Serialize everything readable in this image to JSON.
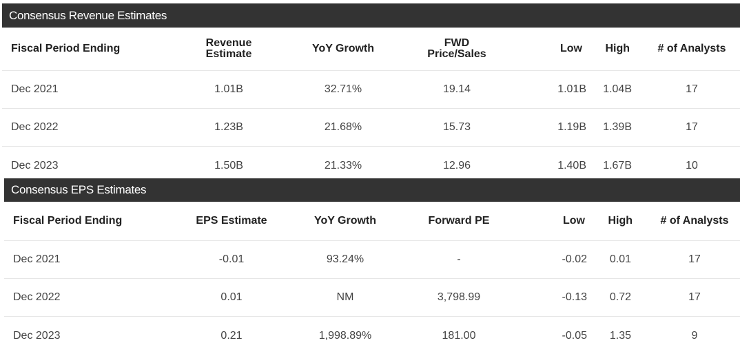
{
  "revenue": {
    "title": "Consensus Revenue Estimates",
    "headers": {
      "period": "Fiscal Period Ending",
      "estimate_line1": "Revenue",
      "estimate_line2": "Estimate",
      "growth": "YoY Growth",
      "ratio_line1": "FWD",
      "ratio_line2": "Price/Sales",
      "low": "Low",
      "high": "High",
      "analysts": "# of Analysts"
    },
    "rows": [
      {
        "period": "Dec 2021",
        "estimate": "1.01B",
        "growth": "32.71%",
        "ratio": "19.14",
        "low": "1.01B",
        "high": "1.04B",
        "analysts": "17"
      },
      {
        "period": "Dec 2022",
        "estimate": "1.23B",
        "growth": "21.68%",
        "ratio": "15.73",
        "low": "1.19B",
        "high": "1.39B",
        "analysts": "17"
      },
      {
        "period": "Dec 2023",
        "estimate": "1.50B",
        "growth": "21.33%",
        "ratio": "12.96",
        "low": "1.40B",
        "high": "1.67B",
        "analysts": "10"
      }
    ]
  },
  "eps": {
    "title": "Consensus EPS Estimates",
    "headers": {
      "period": "Fiscal Period Ending",
      "estimate": "EPS Estimate",
      "growth": "YoY Growth",
      "ratio": "Forward PE",
      "low": "Low",
      "high": "High",
      "analysts": "# of Analysts"
    },
    "rows": [
      {
        "period": "Dec 2021",
        "estimate": "-0.01",
        "growth": "93.24%",
        "ratio": "-",
        "low": "-0.02",
        "high": "0.01",
        "analysts": "17"
      },
      {
        "period": "Dec 2022",
        "estimate": "0.01",
        "growth": "NM",
        "ratio": "3,798.99",
        "low": "-0.13",
        "high": "0.72",
        "analysts": "17"
      },
      {
        "period": "Dec 2023",
        "estimate": "0.21",
        "growth": "1,998.89%",
        "ratio": "181.00",
        "low": "-0.05",
        "high": "1.35",
        "analysts": "9"
      }
    ]
  },
  "colors": {
    "header_bg": "#333333",
    "header_text": "#ffffff",
    "row_divider": "#e6e6e6"
  }
}
